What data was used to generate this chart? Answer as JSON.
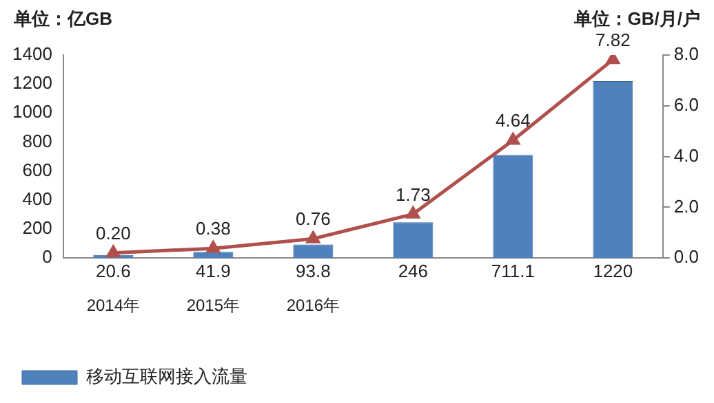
{
  "chart_data": {
    "type": "bar",
    "ylabel": "单位：亿GB",
    "y2label": "单位：GB/月/户",
    "categories": [
      "2014年",
      "2015年",
      "2016年",
      null,
      null,
      null
    ],
    "series": [
      {
        "name": "移动互联网接入流量",
        "color": "#4f81bd",
        "values": [
          20.6,
          41.9,
          93.8,
          246,
          711.1,
          1220
        ]
      },
      {
        "type": "line",
        "axis": "y2",
        "color": "#b0504d",
        "marker": "triangle",
        "values": [
          0.2,
          0.38,
          0.76,
          1.73,
          4.64,
          7.82
        ],
        "value_labels": [
          "0.20",
          "0.38",
          "0.76",
          "1.73",
          "4.64",
          "7.82"
        ]
      }
    ],
    "value_labels": [
      "20.6",
      "41.9",
      "93.8",
      "246",
      "711.1",
      "1220"
    ],
    "ylim": [
      0,
      1400
    ],
    "yticks": [
      0,
      200,
      400,
      600,
      800,
      1000,
      1200,
      1400
    ],
    "y2lim": [
      0,
      8
    ],
    "y2ticks": [
      {
        "value": 0,
        "label": "0.0"
      },
      {
        "value": 2,
        "label": "2.0"
      },
      {
        "value": 4,
        "label": "4.0"
      },
      {
        "value": 6,
        "label": "6.0"
      },
      {
        "value": 8,
        "label": "8.0"
      }
    ],
    "grid": false,
    "legend": "bottom"
  }
}
